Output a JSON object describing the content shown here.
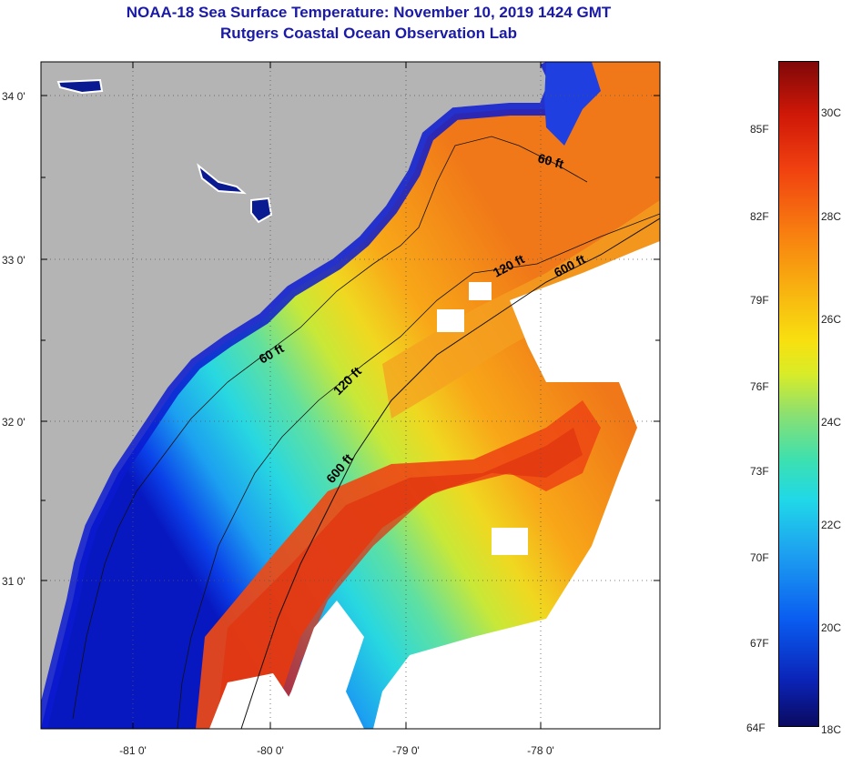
{
  "header": {
    "title": "NOAA-18 Sea Surface Temperature:  November 10, 2019 1424 GMT",
    "subtitle": "Rutgers Coastal Ocean Observation Lab"
  },
  "map": {
    "longitude_labels": [
      "-81 0'",
      "-80 0'",
      "-79 0'",
      "-78 0'"
    ],
    "latitude_labels": [
      "34 0'",
      "33 0'",
      "32 0'",
      "31 0'"
    ],
    "depth_contour_labels": [
      "60 ft",
      "60 ft",
      "120 ft",
      "120 ft",
      "600 ft",
      "600 ft"
    ]
  },
  "colorbar": {
    "fahrenheit_labels": [
      "85F",
      "82F",
      "79F",
      "76F",
      "73F",
      "70F",
      "67F",
      "64F"
    ],
    "celsius_labels": [
      "30C",
      "28C",
      "26C",
      "24C",
      "22C",
      "20C",
      "18C"
    ]
  },
  "colors": {
    "land": "#b4b4b4",
    "title": "#1a1aa6",
    "cloud": "#ffffff"
  }
}
